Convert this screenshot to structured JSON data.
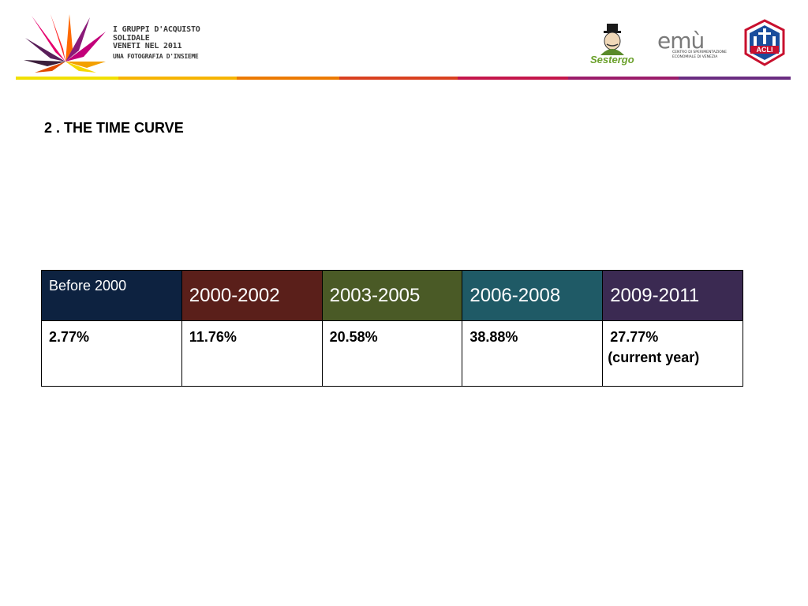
{
  "header": {
    "brand_lines": [
      "I GRUPPI D'ACQUISTO",
      "SOLIDALE",
      "VENETI NEL 2011"
    ],
    "brand_subtitle": "UNA FOTOGRAFIA D'INSIEME",
    "partners": {
      "sestergo": "Sestergo",
      "emu_word": "emù",
      "emu_caption": [
        "CENTRO DI SPERIMENTAZIONE",
        "ECONOMIALE DI VENEZIA"
      ],
      "acli": "ACLI"
    },
    "rule_colors": [
      "#f1e000",
      "#f6b400",
      "#ec7a00",
      "#d9401f",
      "#c4164b",
      "#9b1c6a",
      "#6a2d82"
    ]
  },
  "title": "2 . THE TIME CURVE",
  "table": {
    "columns": [
      {
        "label": "Before 2000",
        "color": "#0d2240"
      },
      {
        "label": "2000-2002",
        "color": "#5a1f1a"
      },
      {
        "label": "2003-2005",
        "color": "#4a5a26"
      },
      {
        "label": "2006-2008",
        "color": "#1f5a66"
      },
      {
        "label": "2009-2011",
        "color": "#3b2a52"
      }
    ],
    "values": [
      "2.77%",
      "11.76%",
      "20.58%",
      "38.88%",
      " 27.77%"
    ],
    "last_note": "(current year)"
  }
}
